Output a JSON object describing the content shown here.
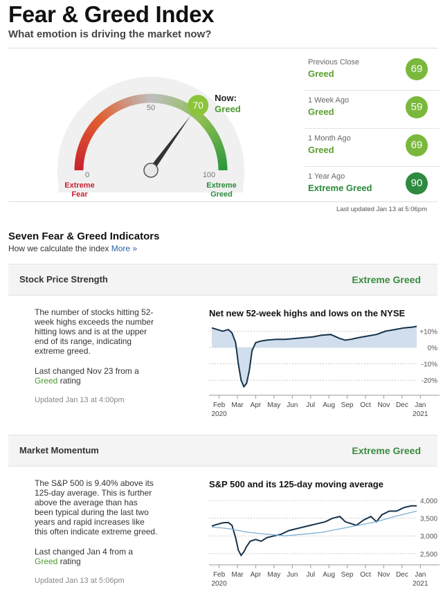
{
  "header": {
    "title": "Fear & Greed Index",
    "subtitle": "What emotion is driving the market now?"
  },
  "gauge": {
    "value": 70,
    "value_label": "70",
    "now_label": "Now:",
    "now_rating": "Greed",
    "tick_0": "0",
    "tick_50": "50",
    "tick_100": "100",
    "left_label_1": "Extreme",
    "left_label_2": "Fear",
    "right_label_1": "Extreme",
    "right_label_2": "Greed",
    "colors": {
      "fear": "#c8212f",
      "greed": "#2a8a39",
      "needle": "#333333"
    }
  },
  "history": [
    {
      "label": "Previous Close",
      "rating": "Greed",
      "value": "69"
    },
    {
      "label": "1 Week Ago",
      "rating": "Greed",
      "value": "59"
    },
    {
      "label": "1 Month Ago",
      "rating": "Greed",
      "value": "69"
    },
    {
      "label": "1 Year Ago",
      "rating": "Extreme Greed",
      "value": "90"
    }
  ],
  "last_updated": "Last updated Jan 13 at 5:06pm",
  "indicators_section": {
    "title": "Seven Fear & Greed Indicators",
    "subtitle": "How we calculate the index",
    "more_link": "More »"
  },
  "indicators": [
    {
      "name": "Stock Price Strength",
      "rating": "Extreme Greed",
      "description": "The number of stocks hitting 52-week highs exceeds the number hitting lows and is at the upper end of its range, indicating extreme greed.",
      "last_changed_prefix": "Last changed Nov 23 from a",
      "last_changed_rating": "Greed",
      "last_changed_suffix": "rating",
      "updated": "Updated Jan 13 at 4:00pm",
      "chart_title": "Net new 52-week highs and lows on the NYSE"
    },
    {
      "name": "Market Momentum",
      "rating": "Extreme Greed",
      "description": "The S&P 500 is 9.40% above its 125-day average. This is further above the average than has been typical during the last two years and rapid increases like this often indicate extreme greed.",
      "last_changed_prefix": "Last changed Jan 4 from a",
      "last_changed_rating": "Greed",
      "last_changed_suffix": "rating",
      "updated": "Updated Jan 13 at 5:06pm",
      "chart_title": "S&P 500 and its 125-day moving average"
    }
  ],
  "chart_data": [
    {
      "type": "area",
      "title": "Net new 52-week highs and lows on the NYSE",
      "x_ticks": [
        "Feb",
        "Mar",
        "Apr",
        "May",
        "Jun",
        "Jul",
        "Aug",
        "Sep",
        "Oct",
        "Nov",
        "Dec",
        "Jan"
      ],
      "x_year_start": "2020",
      "x_year_end": "2021",
      "y_ticks": [
        "+10%",
        "0%",
        "-10%",
        "-20%"
      ],
      "ylim": [
        -25,
        14
      ],
      "series": [
        {
          "x": [
            0,
            0.3,
            0.6,
            0.9,
            1.1,
            1.3,
            1.45,
            1.6,
            1.75,
            1.9,
            2.05,
            2.2,
            2.4,
            2.7,
            3.0,
            3.5,
            4.0,
            4.5,
            5.0,
            5.5,
            6.0,
            6.5,
            7.0,
            7.3,
            7.6,
            8.0,
            8.5,
            9.0,
            9.5,
            10.0,
            10.5,
            11.0,
            11.2
          ],
          "values": [
            12,
            11,
            10,
            11,
            9,
            3,
            -10,
            -20,
            -24,
            -22,
            -14,
            -2,
            3,
            4,
            4.5,
            5,
            5,
            5.5,
            6,
            6.5,
            7.5,
            8,
            5.5,
            4.5,
            5,
            6,
            7,
            8,
            10,
            11,
            12,
            12.5,
            13
          ]
        }
      ]
    },
    {
      "type": "line",
      "title": "S&P 500 and its 125-day moving average",
      "x_ticks": [
        "Feb",
        "Mar",
        "Apr",
        "May",
        "Jun",
        "Jul",
        "Aug",
        "Sep",
        "Oct",
        "Nov",
        "Dec",
        "Jan"
      ],
      "x_year_start": "2020",
      "x_year_end": "2021",
      "y_ticks": [
        "4,000",
        "3,500",
        "3,000",
        "2,500"
      ],
      "ylim": [
        2300,
        4100
      ],
      "series": [
        {
          "x": [
            0,
            0.3,
            0.6,
            0.9,
            1.1,
            1.3,
            1.45,
            1.6,
            1.75,
            1.9,
            2.1,
            2.4,
            2.7,
            3.0,
            3.4,
            3.8,
            4.2,
            4.6,
            5.0,
            5.4,
            5.8,
            6.2,
            6.6,
            7.0,
            7.3,
            7.6,
            7.9,
            8.3,
            8.7,
            9.0,
            9.3,
            9.7,
            10.1,
            10.5,
            10.9,
            11.2
          ],
          "values": [
            3280,
            3330,
            3370,
            3380,
            3300,
            2950,
            2600,
            2450,
            2550,
            2700,
            2850,
            2900,
            2850,
            2950,
            3000,
            3050,
            3150,
            3200,
            3250,
            3300,
            3350,
            3400,
            3500,
            3550,
            3400,
            3350,
            3300,
            3450,
            3550,
            3400,
            3600,
            3700,
            3700,
            3800,
            3850,
            3850
          ]
        },
        {
          "x": [
            0,
            0.5,
            1.0,
            1.5,
            2.0,
            3.0,
            4.0,
            5.0,
            6.0,
            7.0,
            8.0,
            9.0,
            10.0,
            11.2
          ],
          "values": [
            3250,
            3230,
            3200,
            3150,
            3100,
            3050,
            3000,
            3050,
            3100,
            3200,
            3300,
            3400,
            3550,
            3700
          ]
        }
      ]
    }
  ]
}
